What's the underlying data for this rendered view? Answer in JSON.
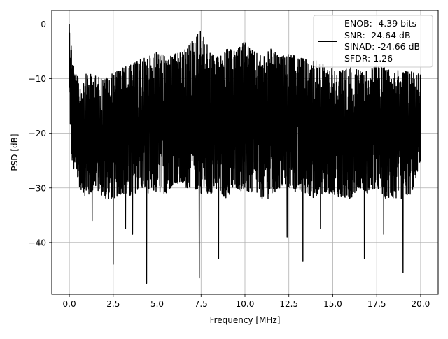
{
  "chart_data": {
    "type": "line",
    "title": "",
    "xlabel": "Frequency [MHz]",
    "ylabel": "PSD [dB]",
    "xlim": [
      -1.0,
      21.0
    ],
    "ylim": [
      -49.5,
      2.5
    ],
    "x_ticks": [
      0.0,
      2.5,
      5.0,
      7.5,
      10.0,
      12.5,
      15.0,
      17.5,
      20.0
    ],
    "x_tick_labels": [
      "0.0",
      "2.5",
      "5.0",
      "7.5",
      "10.0",
      "12.5",
      "15.0",
      "17.5",
      "20.0"
    ],
    "y_ticks": [
      0,
      -10,
      -20,
      -30,
      -40
    ],
    "y_tick_labels": [
      "0",
      "−10",
      "−20",
      "−30",
      "−40"
    ],
    "grid": true,
    "legend_position": "top-right",
    "series": [
      {
        "color": "#000000",
        "legend_lines": [
          "ENOB: -4.39 bits",
          "SNR: -24.64 dB",
          "SINAD: -24.66 dB",
          "SFDR: 1.26"
        ],
        "upper_envelope": {
          "x": [
            0.0,
            0.1,
            0.3,
            0.6,
            1.0,
            1.5,
            2.0,
            2.5,
            3.0,
            3.5,
            4.0,
            4.5,
            5.0,
            5.5,
            6.0,
            6.5,
            7.0,
            7.5,
            8.0,
            8.5,
            9.0,
            9.5,
            10.0,
            10.5,
            11.0,
            11.5,
            12.0,
            12.5,
            13.0,
            13.5,
            14.0,
            14.5,
            15.0,
            15.5,
            16.0,
            16.5,
            17.0,
            17.5,
            18.0,
            18.5,
            19.0,
            19.5,
            20.0
          ],
          "y": [
            0.0,
            -3.0,
            -8.5,
            -10.5,
            -9.0,
            -9.5,
            -10.0,
            -9.0,
            -8.0,
            -7.5,
            -6.5,
            -6.0,
            -5.0,
            -6.0,
            -5.5,
            -5.0,
            -3.0,
            -1.0,
            -5.0,
            -6.0,
            -4.5,
            -5.0,
            -3.0,
            -5.0,
            -6.0,
            -4.5,
            -6.0,
            -5.5,
            -6.0,
            -6.5,
            -6.5,
            -7.5,
            -8.0,
            -8.5,
            -8.0,
            -8.5,
            -8.5,
            -7.5,
            -8.0,
            -8.5,
            -8.5,
            -8.5,
            -9.0
          ]
        },
        "lower_envelope": {
          "x": [
            0.0,
            0.1,
            0.3,
            0.6,
            1.0,
            1.5,
            2.0,
            2.5,
            3.0,
            3.5,
            4.0,
            4.5,
            5.0,
            5.5,
            6.0,
            6.5,
            7.0,
            7.5,
            8.0,
            8.5,
            9.0,
            9.5,
            10.0,
            10.5,
            11.0,
            11.5,
            12.0,
            12.5,
            13.0,
            13.5,
            14.0,
            14.5,
            15.0,
            15.5,
            16.0,
            16.5,
            17.0,
            17.5,
            18.0,
            18.5,
            19.0,
            19.5,
            20.0
          ],
          "y": [
            -13.0,
            -24.0,
            -28.0,
            -30.0,
            -32.0,
            -30.0,
            -32.0,
            -32.0,
            -31.0,
            -32.0,
            -30.0,
            -31.0,
            -31.0,
            -31.0,
            -29.0,
            -30.0,
            -30.0,
            -31.0,
            -31.0,
            -31.0,
            -32.0,
            -30.0,
            -31.0,
            -31.0,
            -32.0,
            -32.0,
            -30.0,
            -30.0,
            -31.0,
            -31.0,
            -32.0,
            -31.0,
            -31.0,
            -32.0,
            -32.0,
            -30.0,
            -31.0,
            -30.0,
            -32.0,
            -32.0,
            -32.0,
            -31.0,
            -25.0
          ]
        },
        "deep_dips": {
          "x": [
            1.3,
            2.5,
            3.2,
            3.6,
            4.4,
            7.4,
            8.5,
            12.4,
            13.3,
            14.3,
            16.8,
            17.9,
            19.0
          ],
          "y": [
            -36.0,
            -44.0,
            -37.5,
            -38.5,
            -47.5,
            -46.5,
            -43.0,
            -39.0,
            -43.5,
            -37.5,
            -43.0,
            -38.5,
            -45.5
          ]
        }
      }
    ]
  }
}
